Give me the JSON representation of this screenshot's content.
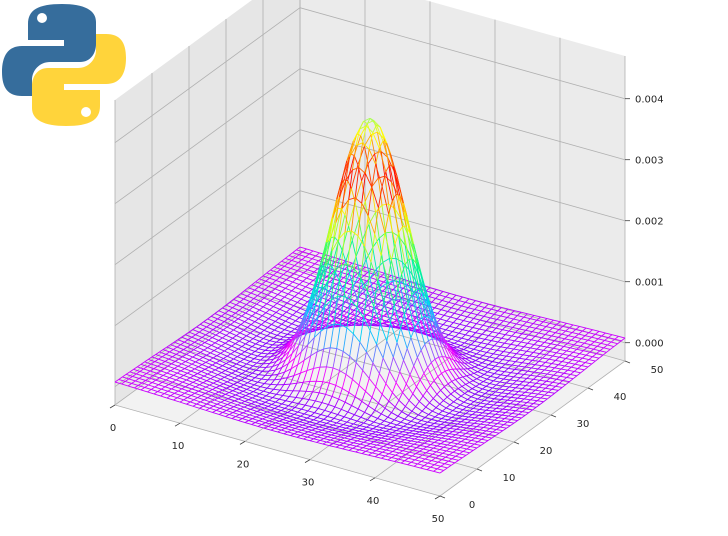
{
  "chart_data": {
    "type": "surface-wireframe-3d",
    "function": "z(x, y) = a*exp(-r^2/(2*s1^2)) - b*exp(-r^2/(2*s2^2)), r = distance from grid centre",
    "x": {
      "range": [
        0,
        50
      ],
      "ticks": [
        "0",
        "10",
        "20",
        "30",
        "40",
        "50"
      ]
    },
    "y": {
      "range": [
        0,
        50
      ],
      "ticks": [
        "0",
        "10",
        "20",
        "30",
        "40",
        "50"
      ]
    },
    "z": {
      "range": [
        -0.0003,
        0.0047
      ],
      "ticks": [
        "0.000",
        "0.001",
        "0.002",
        "0.003",
        "0.004"
      ]
    },
    "peak": {
      "x": 25,
      "y": 25,
      "z": 0.0045
    },
    "grid_points": 51,
    "grid": true,
    "colormap": [
      "#0000ff",
      "#ff00ff",
      "#00ccff",
      "#00ff80",
      "#ffff00",
      "#ff0000",
      "#ffff00",
      "#00ffff"
    ],
    "pane_colors": {
      "back": "#ebebeb",
      "side": "#e6e6e6",
      "floor": "#f2f2f2",
      "gridline": "#b0b0b0"
    }
  },
  "logo": {
    "icon": "python-logo-icon",
    "colors": [
      "#366d9c",
      "#ffd43b"
    ]
  }
}
